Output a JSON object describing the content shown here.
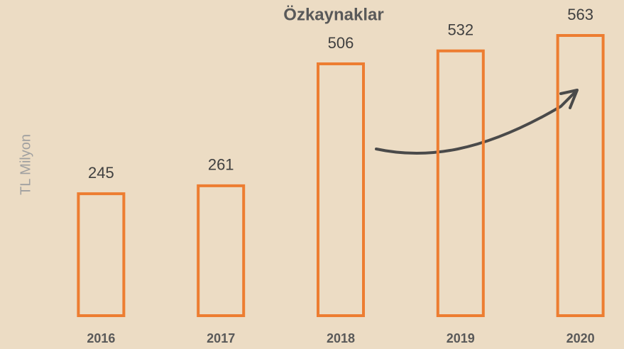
{
  "chart_data": {
    "type": "bar",
    "title": "Özkaynaklar",
    "y_label": "TL Milyon",
    "categories": [
      "2016",
      "2017",
      "2018",
      "2019",
      "2020"
    ],
    "values": [
      245,
      261,
      506,
      532,
      563
    ],
    "color": "#ed7d31"
  }
}
